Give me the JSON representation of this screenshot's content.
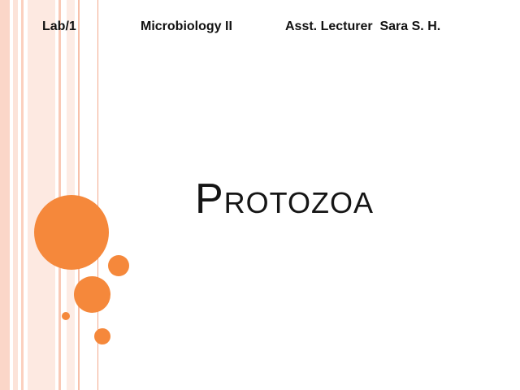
{
  "header": {
    "lab": "Lab/1",
    "course": "Microbiology II",
    "lecturer": "Asst. Lecturer  Sara S. H."
  },
  "slide": {
    "title": "Protozoa"
  },
  "colors": {
    "accent": "#f5883b",
    "stripe_light": "#fde9e1",
    "text": "#111111"
  }
}
